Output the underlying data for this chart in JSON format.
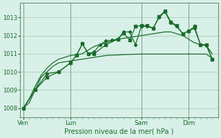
{
  "background_color": "#d8f0e8",
  "grid_color": "#a0c8b0",
  "line_color": "#1a6b2a",
  "xlabel": "Pression niveau de la mer( hPa )",
  "ylim": [
    1007.5,
    1013.8
  ],
  "yticks": [
    1008,
    1009,
    1010,
    1011,
    1012,
    1013
  ],
  "xtick_labels": [
    "Ven",
    "Lun",
    "Sam",
    "Dim"
  ],
  "xtick_positions": [
    0,
    8,
    20,
    28
  ],
  "vline_positions": [
    0,
    8,
    20,
    28
  ],
  "xlim": [
    -0.5,
    33
  ],
  "series1_x": [
    0,
    1,
    2,
    3,
    4,
    5,
    6,
    7,
    8,
    9,
    10,
    11,
    12,
    13,
    14,
    15,
    16,
    17,
    18,
    19,
    20,
    21,
    22,
    23,
    24,
    25,
    26,
    27,
    28,
    29,
    30,
    31,
    32
  ],
  "series1": [
    1008.0,
    1008.3,
    1009.0,
    1009.7,
    1010.0,
    1010.3,
    1010.5,
    1010.55,
    1010.6,
    1010.65,
    1010.7,
    1010.75,
    1010.8,
    1010.85,
    1010.9,
    1010.92,
    1010.93,
    1010.95,
    1010.96,
    1010.97,
    1010.98,
    1010.98,
    1010.98,
    1010.98,
    1010.98,
    1010.98,
    1010.98,
    1010.98,
    1010.98,
    1010.98,
    1010.98,
    1010.98,
    1010.75
  ],
  "series2_x": [
    0,
    1,
    2,
    3,
    4,
    5,
    6,
    7,
    8,
    9,
    10,
    11,
    12,
    13,
    14,
    15,
    16,
    17,
    18,
    19,
    20,
    21,
    22,
    23,
    24,
    25,
    26,
    27,
    28,
    29,
    30,
    31,
    32
  ],
  "series2": [
    1008.0,
    1008.5,
    1009.2,
    1009.8,
    1010.2,
    1010.5,
    1010.7,
    1010.8,
    1010.9,
    1010.95,
    1011.0,
    1011.2,
    1011.4,
    1011.5,
    1011.6,
    1011.7,
    1011.8,
    1011.85,
    1011.9,
    1011.95,
    1012.0,
    1012.05,
    1012.1,
    1012.15,
    1012.2,
    1012.2,
    1012.1,
    1012.0,
    1011.8,
    1011.6,
    1011.5,
    1011.45,
    1011.0
  ],
  "series3_x": [
    0,
    2,
    4,
    6,
    8,
    9,
    10,
    11,
    12,
    13,
    14,
    15,
    16,
    17,
    18,
    19,
    20,
    21,
    22,
    23,
    24,
    25,
    26,
    27,
    28,
    29,
    30,
    31,
    32
  ],
  "series3": [
    1008.0,
    1009.0,
    1009.9,
    1010.0,
    1010.5,
    1010.9,
    1011.55,
    1011.0,
    1011.1,
    1011.5,
    1011.7,
    1011.75,
    1011.8,
    1012.2,
    1012.2,
    1011.5,
    1012.5,
    1012.5,
    1012.4,
    1013.0,
    1013.3,
    1012.7,
    1012.5,
    1012.1,
    1012.25,
    1012.4,
    1011.5,
    1011.45,
    1010.7
  ],
  "series4_x": [
    0,
    2,
    4,
    6,
    8,
    9,
    10,
    11,
    12,
    14,
    16,
    17,
    18,
    19,
    20,
    21,
    22,
    23,
    24,
    25,
    26,
    27,
    28,
    29,
    30,
    31,
    32
  ],
  "series4": [
    1008.0,
    1009.0,
    1009.7,
    1010.0,
    1010.5,
    1010.9,
    1011.55,
    1011.0,
    1011.0,
    1011.5,
    1011.8,
    1012.15,
    1011.75,
    1012.5,
    1012.55,
    1012.55,
    1012.4,
    1013.05,
    1013.35,
    1012.75,
    1012.55,
    1012.1,
    1012.25,
    1012.5,
    1011.5,
    1011.5,
    1010.7
  ]
}
